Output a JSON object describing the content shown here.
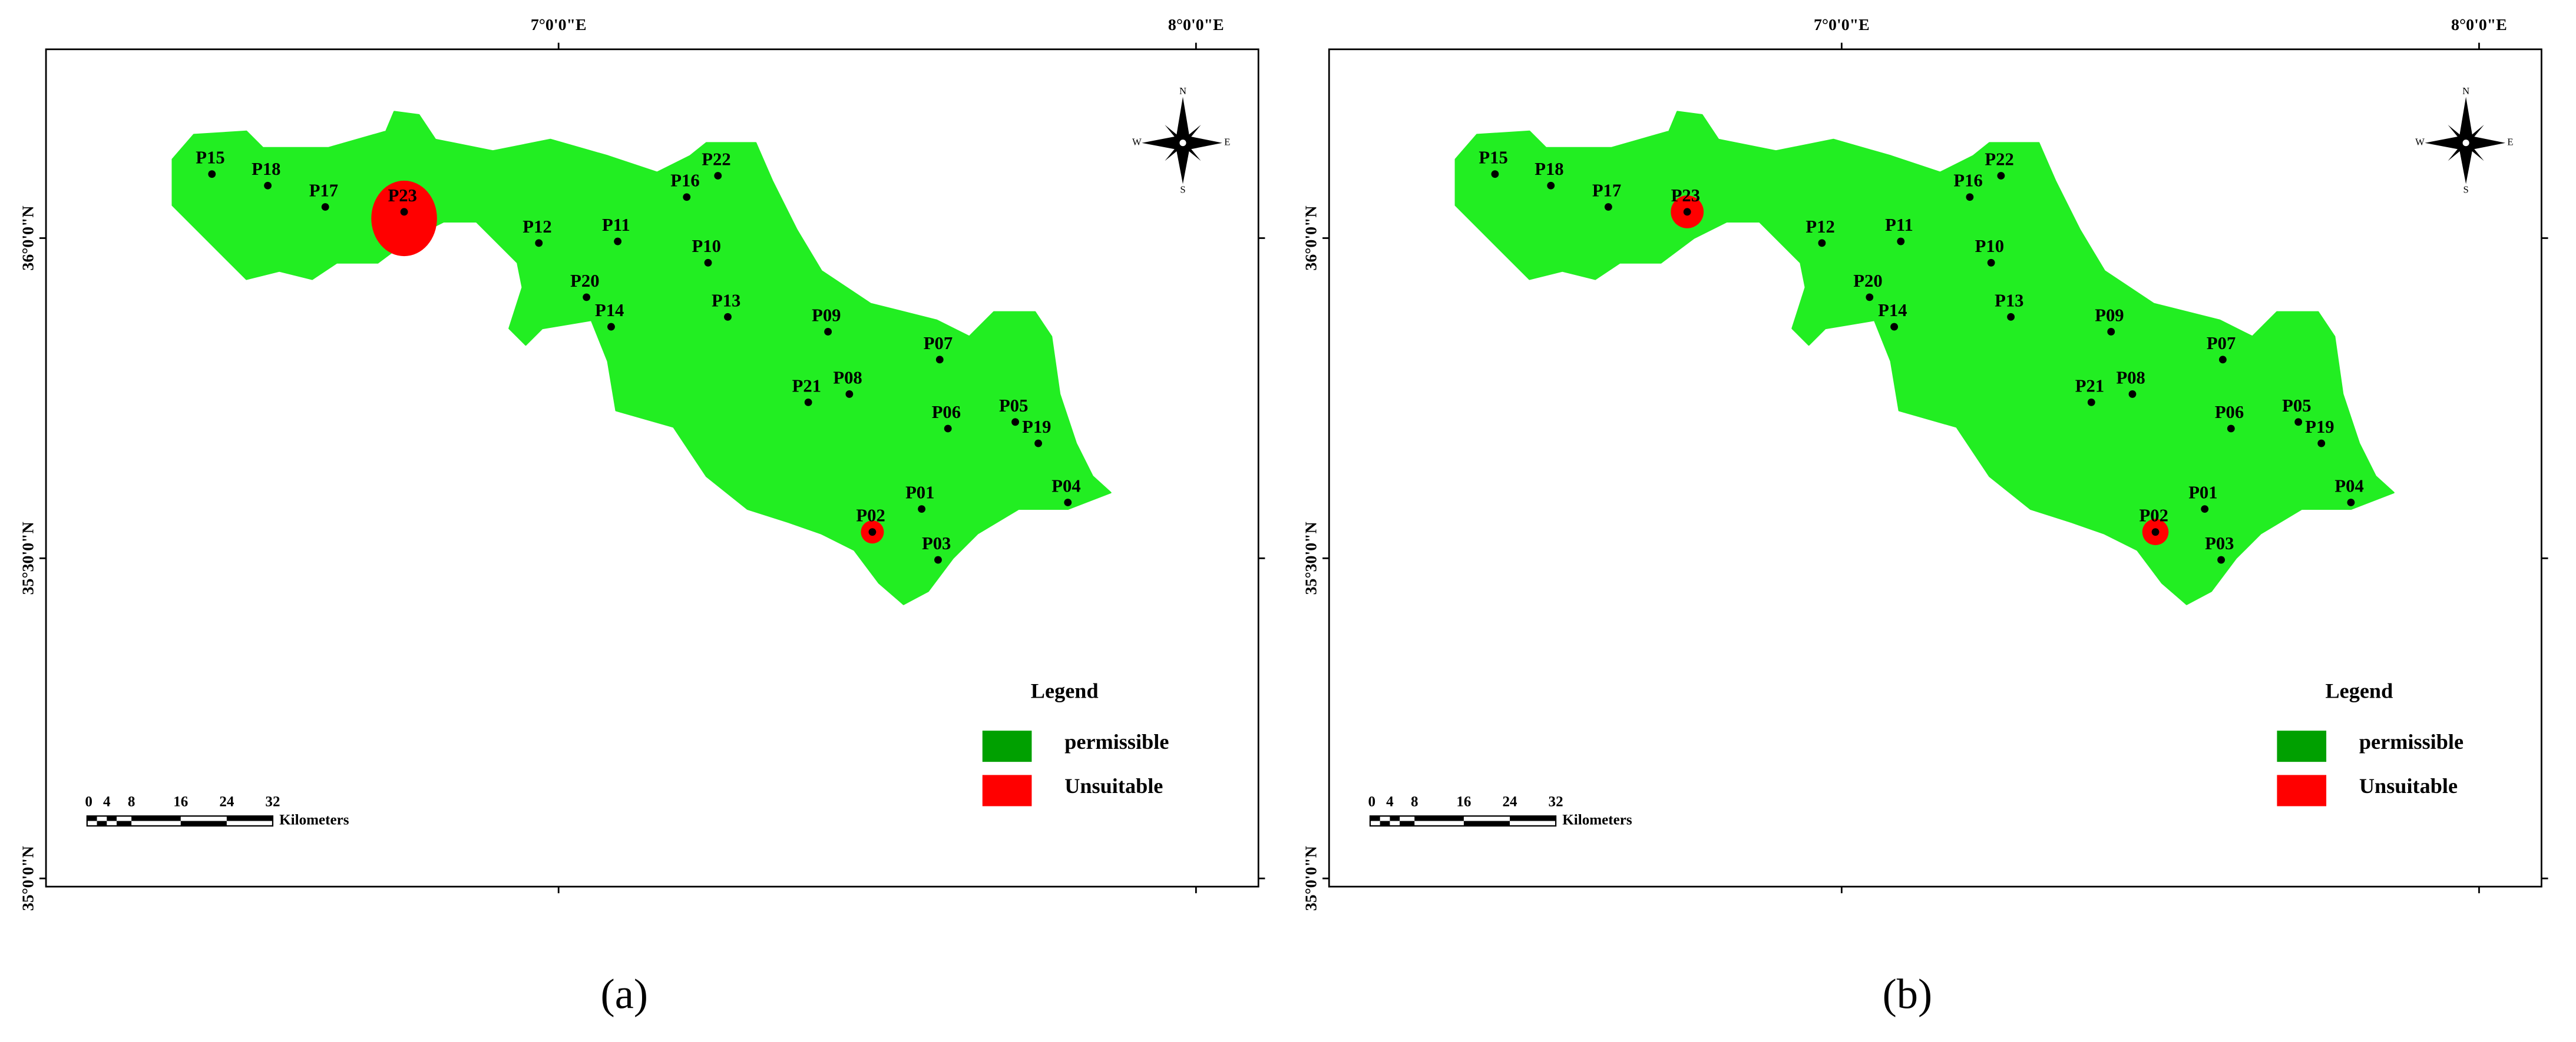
{
  "panels": [
    {
      "label": "(a)",
      "x_ticks": [
        "7°0'0\"E",
        "8°0'0\"E"
      ],
      "y_ticks": [
        "36°0'0\"N",
        "35°30'0\"N",
        "35°0'0\"N"
      ],
      "points": [
        "P15",
        "P18",
        "P17",
        "P23",
        "P12",
        "P11",
        "P16",
        "P22",
        "P10",
        "P20",
        "P14",
        "P13",
        "P09",
        "P07",
        "P21",
        "P08",
        "P06",
        "P05",
        "P19",
        "P04",
        "P01",
        "P02",
        "P03"
      ],
      "legend": {
        "title": "Legend",
        "items": [
          "permissible",
          "Unsuitable"
        ]
      },
      "scale_bar": {
        "ticks": [
          "0",
          "4",
          "8",
          "16",
          "24",
          "32"
        ],
        "unit": "Kilometers"
      },
      "compass": [
        "N",
        "E",
        "S",
        "W"
      ]
    },
    {
      "label": "(b)",
      "x_ticks": [
        "7°0'0\"E",
        "8°0'0\"E"
      ],
      "y_ticks": [
        "36°0'0\"N",
        "35°30'0\"N",
        "35°0'0\"N"
      ],
      "points": [
        "P15",
        "P18",
        "P17",
        "P23",
        "P12",
        "P11",
        "P16",
        "P22",
        "P10",
        "P20",
        "P14",
        "P13",
        "P09",
        "P07",
        "P21",
        "P08",
        "P06",
        "P05",
        "P19",
        "P04",
        "P01",
        "P02",
        "P03"
      ],
      "legend": {
        "title": "Legend",
        "items": [
          "permissible",
          "Unsuitable"
        ]
      },
      "scale_bar": {
        "ticks": [
          "0",
          "4",
          "8",
          "16",
          "24",
          "32"
        ],
        "unit": "Kilometers"
      },
      "compass": [
        "N",
        "E",
        "S",
        "W"
      ]
    }
  ]
}
